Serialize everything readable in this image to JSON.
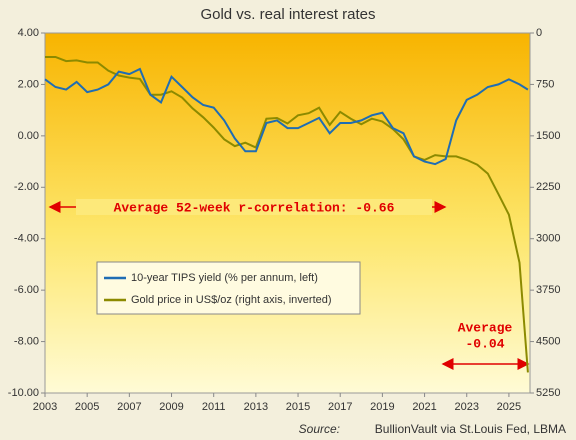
{
  "chart_data": {
    "type": "line",
    "title": "Gold vs. real interest rates",
    "x": [
      2003,
      2003.5,
      2004,
      2004.5,
      2005,
      2005.5,
      2006,
      2006.5,
      2007,
      2007.5,
      2008,
      2008.5,
      2009,
      2009.5,
      2010,
      2010.5,
      2011,
      2011.5,
      2012,
      2012.5,
      2013,
      2013.5,
      2014,
      2014.5,
      2015,
      2015.5,
      2016,
      2016.5,
      2017,
      2017.5,
      2018,
      2018.5,
      2019,
      2019.5,
      2020,
      2020.5,
      2021,
      2021.5,
      2022,
      2022.5,
      2023,
      2023.5,
      2024,
      2024.5,
      2025,
      2025.5,
      2025.9
    ],
    "series": [
      {
        "name": "10-year TIPS yield (% per annum, left)",
        "color": "#1f6db4",
        "values": [
          2.2,
          1.9,
          1.8,
          2.1,
          1.7,
          1.8,
          2.0,
          2.5,
          2.4,
          2.6,
          1.6,
          1.3,
          2.3,
          1.9,
          1.5,
          1.2,
          1.1,
          0.6,
          -0.1,
          -0.6,
          -0.6,
          0.5,
          0.6,
          0.3,
          0.3,
          0.5,
          0.7,
          0.1,
          0.5,
          0.5,
          0.6,
          0.8,
          0.9,
          0.3,
          0.1,
          -0.8,
          -1.0,
          -1.1,
          -0.9,
          0.6,
          1.4,
          1.6,
          1.9,
          2.0,
          2.2,
          2.0,
          1.8
        ]
      },
      {
        "name": "Gold price in US$/oz (right axis, inverted)",
        "color": "#8c8a00",
        "axis": "y2",
        "values": [
          350,
          350,
          410,
          400,
          430,
          430,
          550,
          620,
          650,
          670,
          900,
          900,
          850,
          940,
          1100,
          1230,
          1380,
          1550,
          1650,
          1600,
          1670,
          1250,
          1240,
          1320,
          1200,
          1170,
          1090,
          1340,
          1150,
          1250,
          1330,
          1250,
          1290,
          1400,
          1550,
          1800,
          1850,
          1780,
          1800,
          1800,
          1850,
          1920,
          2050,
          2350,
          2650,
          3350,
          4950
        ]
      }
    ],
    "xlim": [
      2003,
      2026
    ],
    "xticks": [
      2003,
      2005,
      2007,
      2009,
      2011,
      2013,
      2015,
      2017,
      2019,
      2021,
      2023,
      2025
    ],
    "ylim": [
      -10,
      4
    ],
    "yticks": [
      {
        "value": -10,
        "label": "-10.00"
      },
      {
        "value": -8,
        "label": "-8.00"
      },
      {
        "value": -6,
        "label": "-6.00"
      },
      {
        "value": -4,
        "label": "-4.00"
      },
      {
        "value": -2,
        "label": "-2.00"
      },
      {
        "value": 0,
        "label": "0.00"
      },
      {
        "value": 2,
        "label": "2.00"
      },
      {
        "value": 4,
        "label": "4.00"
      }
    ],
    "y2lim": [
      5250,
      0
    ],
    "y2ticks": [
      0,
      750,
      1500,
      2250,
      3000,
      3750,
      4500,
      5250
    ],
    "y2_inverted": true,
    "annotations": [
      "Average 52-week r-correlation: -0.66",
      "Average",
      "-0.04"
    ],
    "source_label": "Source:",
    "source": "BullionVault via St.Louis Fed, LBMA"
  }
}
